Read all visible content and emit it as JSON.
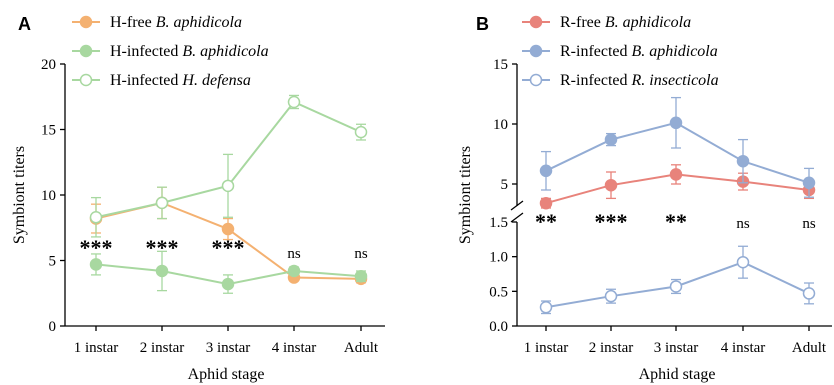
{
  "chart_data": [
    {
      "panel_label": "A",
      "type": "line",
      "xlabel": "Aphid stage",
      "ylabel": "Symbiont titers",
      "categories": [
        "1 instar",
        "2 instar",
        "3 instar",
        "4 instar",
        "Adult"
      ],
      "ylim": [
        0,
        20
      ],
      "yticks": [
        "0",
        "5",
        "10",
        "15",
        "20"
      ],
      "series": [
        {
          "name": "H-free",
          "name_italic": "B. aphidicola",
          "color": "#f4b171",
          "marker": "filled-circle",
          "values": [
            8.2,
            9.4,
            7.4,
            3.7,
            3.6
          ],
          "errors": [
            1.1,
            1.2,
            0.8,
            0.2,
            0.3
          ]
        },
        {
          "name": "H-infected",
          "name_italic": "B. aphidicola",
          "color": "#a8d8a0",
          "marker": "filled-circle",
          "values": [
            4.7,
            4.2,
            3.2,
            4.2,
            3.8
          ],
          "errors": [
            0.8,
            1.5,
            0.7,
            0.3,
            0.4
          ]
        },
        {
          "name": "H-infected",
          "name_italic": "H. defensa",
          "color": "#a8d8a0",
          "marker": "open-circle",
          "values": [
            8.3,
            9.4,
            10.7,
            17.1,
            14.8
          ],
          "errors": [
            1.5,
            1.2,
            2.4,
            0.5,
            0.6
          ]
        }
      ],
      "significance": [
        "***",
        "***",
        "***",
        "ns",
        "ns"
      ]
    },
    {
      "panel_label": "B",
      "type": "line",
      "xlabel": "Aphid stage",
      "ylabel": "Symbiont titers",
      "categories": [
        "1 instar",
        "2 instar",
        "3 instar",
        "4 instar",
        "Adult"
      ],
      "axis_break": true,
      "ylim_upper": [
        2.5,
        15
      ],
      "ylim_lower": [
        0,
        1.5
      ],
      "yticks_upper": [
        "5",
        "10",
        "15"
      ],
      "yticks_lower": [
        "0.0",
        "0.5",
        "1.0",
        "1.5"
      ],
      "series": [
        {
          "name": "R-free",
          "name_italic": "B. aphidicola",
          "color": "#e8837b",
          "marker": "filled-circle",
          "segment": "upper",
          "values": [
            3.4,
            4.9,
            5.8,
            5.2,
            4.5
          ],
          "errors": [
            0.4,
            1.1,
            0.8,
            0.7,
            0.7
          ]
        },
        {
          "name": "R-infected",
          "name_italic": "B. aphidicola",
          "color": "#93acd4",
          "marker": "filled-circle",
          "segment": "upper",
          "values": [
            6.1,
            8.7,
            10.1,
            6.9,
            5.1
          ],
          "errors": [
            1.6,
            0.5,
            2.1,
            1.8,
            1.2
          ]
        },
        {
          "name": "R-infected",
          "name_italic": "R. insecticola",
          "color": "#93acd4",
          "marker": "open-circle",
          "segment": "lower",
          "values": [
            0.27,
            0.43,
            0.57,
            0.92,
            0.47
          ],
          "errors": [
            0.09,
            0.1,
            0.1,
            0.23,
            0.15
          ]
        }
      ],
      "significance": [
        "**",
        "***",
        "**",
        "ns",
        "ns"
      ]
    }
  ]
}
